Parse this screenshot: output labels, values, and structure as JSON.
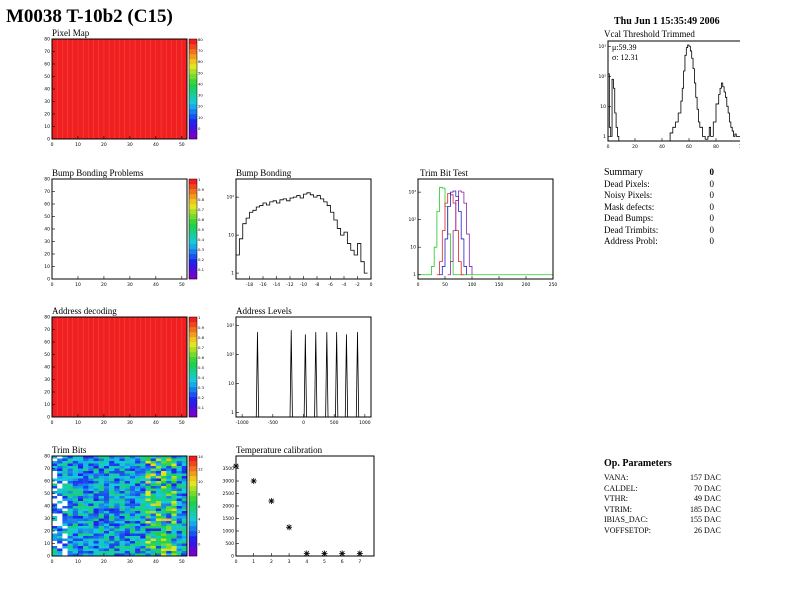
{
  "page": {
    "title": "M0038 T-10b2 (C15)",
    "date": "Thu Jun  1 15:35:49 2006"
  },
  "panels": {
    "pixel_map": {
      "label": "Pixel Map"
    },
    "vcal": {
      "label": "Vcal Threshold Trimmed",
      "mu": "μ:59.39",
      "sigma": "σ: 12.31"
    },
    "bump_problems": {
      "label": "Bump Bonding Problems"
    },
    "bump_bonding": {
      "label": "Bump Bonding"
    },
    "trim_bit_test": {
      "label": "Trim Bit Test"
    },
    "address_decoding": {
      "label": "Address decoding"
    },
    "address_levels": {
      "label": "Address Levels"
    },
    "trim_bits": {
      "label": "Trim Bits"
    },
    "temperature": {
      "label": "Temperature calibration"
    }
  },
  "summary": {
    "title": "Summary",
    "title_value": "0",
    "rows": [
      {
        "label": "Dead Pixels:",
        "value": "0"
      },
      {
        "label": "Noisy Pixels:",
        "value": "0"
      },
      {
        "label": "Mask defects:",
        "value": "0"
      },
      {
        "label": "Dead Bumps:",
        "value": "0"
      },
      {
        "label": "Dead Trimbits:",
        "value": "0"
      },
      {
        "label": "Address Probl:",
        "value": "0"
      }
    ]
  },
  "op_params": {
    "title": "Op. Parameters",
    "rows": [
      {
        "label": "VANA:",
        "value": "157 DAC"
      },
      {
        "label": "CALDEL:",
        "value": "70 DAC"
      },
      {
        "label": "VTHR:",
        "value": "49 DAC"
      },
      {
        "label": "VTRIM:",
        "value": "185 DAC"
      },
      {
        "label": "IBIAS_DAC:",
        "value": "155 DAC"
      },
      {
        "label": "VOFFSETOP:",
        "value": "26 DAC"
      }
    ]
  },
  "colors": {
    "map_red": "#f02020",
    "hist_line": "#000000",
    "trim_green": "#22cc22",
    "trim_red": "#dd2222",
    "trim_blue": "#2222cc",
    "trim_purple": "#8822aa"
  },
  "chart_data": [
    {
      "id": "pixel_map",
      "type": "heatmap",
      "xticks": [
        "0",
        "10",
        "20",
        "30",
        "40",
        "50"
      ],
      "yticks": [
        "0",
        "10",
        "20",
        "30",
        "40",
        "50",
        "60",
        "70",
        "80"
      ],
      "zticks": [
        "0",
        "10",
        "20",
        "30",
        "40",
        "50",
        "60",
        "70",
        "80"
      ],
      "xlim": [
        0,
        52
      ],
      "ylim": [
        0,
        80
      ],
      "fill": "uniform-high"
    },
    {
      "id": "vcal",
      "type": "line",
      "log_y": true,
      "xticks": [
        "0",
        "20",
        "40",
        "60",
        "80",
        "100"
      ],
      "yticks": [
        "1",
        "10",
        "10²",
        "10³"
      ],
      "xlim": [
        0,
        100
      ],
      "ylim": [
        0.7,
        1500
      ],
      "x": [
        0,
        1,
        2,
        3,
        4,
        5,
        6,
        7,
        8,
        10,
        12,
        14,
        16,
        18,
        20,
        25,
        28,
        30,
        35,
        38,
        40,
        42,
        44,
        46,
        48,
        50,
        52,
        54,
        55,
        56,
        57,
        58,
        59,
        60,
        61,
        62,
        63,
        64,
        65,
        66,
        67,
        68,
        70,
        72,
        74,
        75,
        76,
        78,
        80,
        82,
        83,
        84,
        85,
        86,
        87,
        88,
        89,
        90,
        91,
        92,
        93,
        94,
        95,
        96,
        97,
        98,
        99
      ],
      "y": [
        120,
        2,
        1,
        80,
        40,
        6,
        2,
        1,
        0.7,
        0.7,
        0.7,
        0.7,
        0.7,
        0.7,
        0.7,
        0.7,
        0.7,
        0.7,
        0.7,
        0.7,
        0.7,
        0.7,
        0.7,
        1.3,
        2,
        3,
        6,
        15,
        40,
        150,
        500,
        900,
        1100,
        1000,
        700,
        400,
        180,
        60,
        20,
        8,
        3,
        2,
        1,
        0.8,
        1,
        2,
        1,
        3,
        12,
        25,
        40,
        60,
        45,
        30,
        20,
        10,
        6,
        3,
        2,
        1.5,
        1,
        1.2,
        1,
        1,
        1,
        1,
        0.8
      ]
    },
    {
      "id": "bump_problems",
      "type": "heatmap",
      "xticks": [
        "0",
        "10",
        "20",
        "30",
        "40",
        "50"
      ],
      "yticks": [
        "0",
        "10",
        "20",
        "30",
        "40",
        "50",
        "60",
        "70",
        "80"
      ],
      "zticks": [
        "0.1",
        "0.2",
        "0.3",
        "0.4",
        "0.5",
        "0.6",
        "0.7",
        "0.8",
        "0.9",
        "1"
      ],
      "xlim": [
        0,
        52
      ],
      "ylim": [
        0,
        80
      ],
      "fill": "empty"
    },
    {
      "id": "bump_bonding",
      "type": "line",
      "log_y": true,
      "xticks": [
        "-18",
        "-16",
        "-14",
        "-12",
        "-10",
        "-8",
        "-6",
        "-4",
        "-2",
        "0"
      ],
      "yticks": [
        "1",
        "10",
        "10²"
      ],
      "xlim": [
        -20,
        0
      ],
      "ylim": [
        0.7,
        300
      ],
      "x": [
        -20,
        -19.5,
        -19,
        -18.5,
        -18,
        -17.5,
        -17,
        -16.5,
        -16,
        -15.5,
        -15,
        -14.5,
        -14,
        -13.5,
        -13,
        -12.5,
        -12,
        -11.5,
        -11,
        -10.5,
        -10,
        -9.5,
        -9,
        -8.5,
        -8,
        -7.5,
        -7,
        -6.5,
        -6,
        -5.5,
        -5,
        -4.5,
        -4,
        -3.5,
        -3,
        -2.5,
        -2,
        -1.5,
        -1,
        -0.5
      ],
      "y": [
        3,
        8,
        20,
        28,
        40,
        45,
        55,
        60,
        70,
        62,
        75,
        80,
        70,
        85,
        90,
        80,
        95,
        100,
        110,
        95,
        120,
        130,
        115,
        100,
        110,
        90,
        75,
        60,
        40,
        25,
        15,
        10,
        12,
        6,
        4,
        3,
        6,
        2,
        1,
        1
      ]
    },
    {
      "id": "trim_bit_test",
      "type": "line",
      "log_y": true,
      "xticks": [
        "0",
        "50",
        "100",
        "150",
        "200",
        "250"
      ],
      "yticks": [
        "1",
        "10",
        "10²",
        "10³"
      ],
      "xlim": [
        0,
        250
      ],
      "ylim": [
        0.7,
        3000
      ],
      "series": [
        {
          "color": "#22cc22",
          "x": [
            0,
            20,
            25,
            30,
            35,
            40,
            45,
            50,
            55,
            60,
            65,
            70,
            80,
            100,
            150,
            200,
            250
          ],
          "y": [
            1,
            1,
            2,
            10,
            200,
            1500,
            1400,
            300,
            30,
            3,
            1,
            1,
            1,
            1,
            1,
            1,
            1
          ]
        },
        {
          "color": "#dd2222",
          "x": [
            35,
            40,
            45,
            50,
            55,
            60,
            65,
            70,
            75,
            80,
            85
          ],
          "y": [
            1,
            3,
            40,
            400,
            900,
            800,
            400,
            40,
            3,
            1,
            1
          ]
        },
        {
          "color": "#2222cc",
          "x": [
            40,
            45,
            50,
            55,
            60,
            65,
            70,
            75,
            80,
            85,
            90
          ],
          "y": [
            1,
            2,
            20,
            300,
            1000,
            1100,
            700,
            200,
            20,
            2,
            1
          ]
        },
        {
          "color": "#8822aa",
          "x": [
            55,
            60,
            65,
            70,
            75,
            80,
            85,
            90,
            95,
            100
          ],
          "y": [
            1,
            3,
            40,
            500,
            1100,
            1000,
            400,
            30,
            2,
            1
          ]
        }
      ]
    },
    {
      "id": "address_decoding",
      "type": "heatmap",
      "xticks": [
        "0",
        "10",
        "20",
        "30",
        "40",
        "50"
      ],
      "yticks": [
        "0",
        "10",
        "20",
        "30",
        "40",
        "50",
        "60",
        "70",
        "80"
      ],
      "zticks": [
        "0.1",
        "0.2",
        "0.3",
        "0.4",
        "0.5",
        "0.6",
        "0.7",
        "0.8",
        "0.9",
        "1"
      ],
      "xlim": [
        0,
        52
      ],
      "ylim": [
        0,
        80
      ],
      "fill": "uniform-high"
    },
    {
      "id": "address_levels",
      "type": "line",
      "log_y": true,
      "xticks": [
        "-1000",
        "-500",
        "0",
        "500",
        "1000"
      ],
      "yticks": [
        "1",
        "10",
        "10²",
        "10³"
      ],
      "xlim": [
        -1100,
        1100
      ],
      "ylim": [
        0.7,
        2000
      ],
      "peaks": [
        -750,
        -200,
        30,
        200,
        380,
        540,
        700,
        880
      ],
      "peak_heights": [
        600,
        700,
        500,
        600,
        600,
        600,
        500,
        600
      ]
    },
    {
      "id": "trim_bits",
      "type": "heatmap",
      "xticks": [
        "0",
        "10",
        "20",
        "30",
        "40",
        "50"
      ],
      "yticks": [
        "0",
        "10",
        "20",
        "30",
        "40",
        "50",
        "60",
        "70",
        "80"
      ],
      "zticks": [
        "0",
        "2",
        "4",
        "6",
        "8",
        "10",
        "12",
        "14"
      ],
      "xlim": [
        0,
        52
      ],
      "ylim": [
        0,
        80
      ],
      "fill": "random-low"
    },
    {
      "id": "temperature",
      "type": "scatter",
      "xticks": [
        "0",
        "1",
        "2",
        "3",
        "4",
        "5",
        "6",
        "7"
      ],
      "yticks": [
        "0",
        "500",
        "1000",
        "1500",
        "2000",
        "2500",
        "3000",
        "3500"
      ],
      "xlim": [
        0,
        7.8
      ],
      "ylim": [
        0,
        4000
      ],
      "x": [
        0,
        1,
        2,
        3,
        4,
        5,
        6,
        7
      ],
      "y": [
        3600,
        3000,
        2200,
        1150,
        100,
        100,
        100,
        100
      ]
    }
  ]
}
